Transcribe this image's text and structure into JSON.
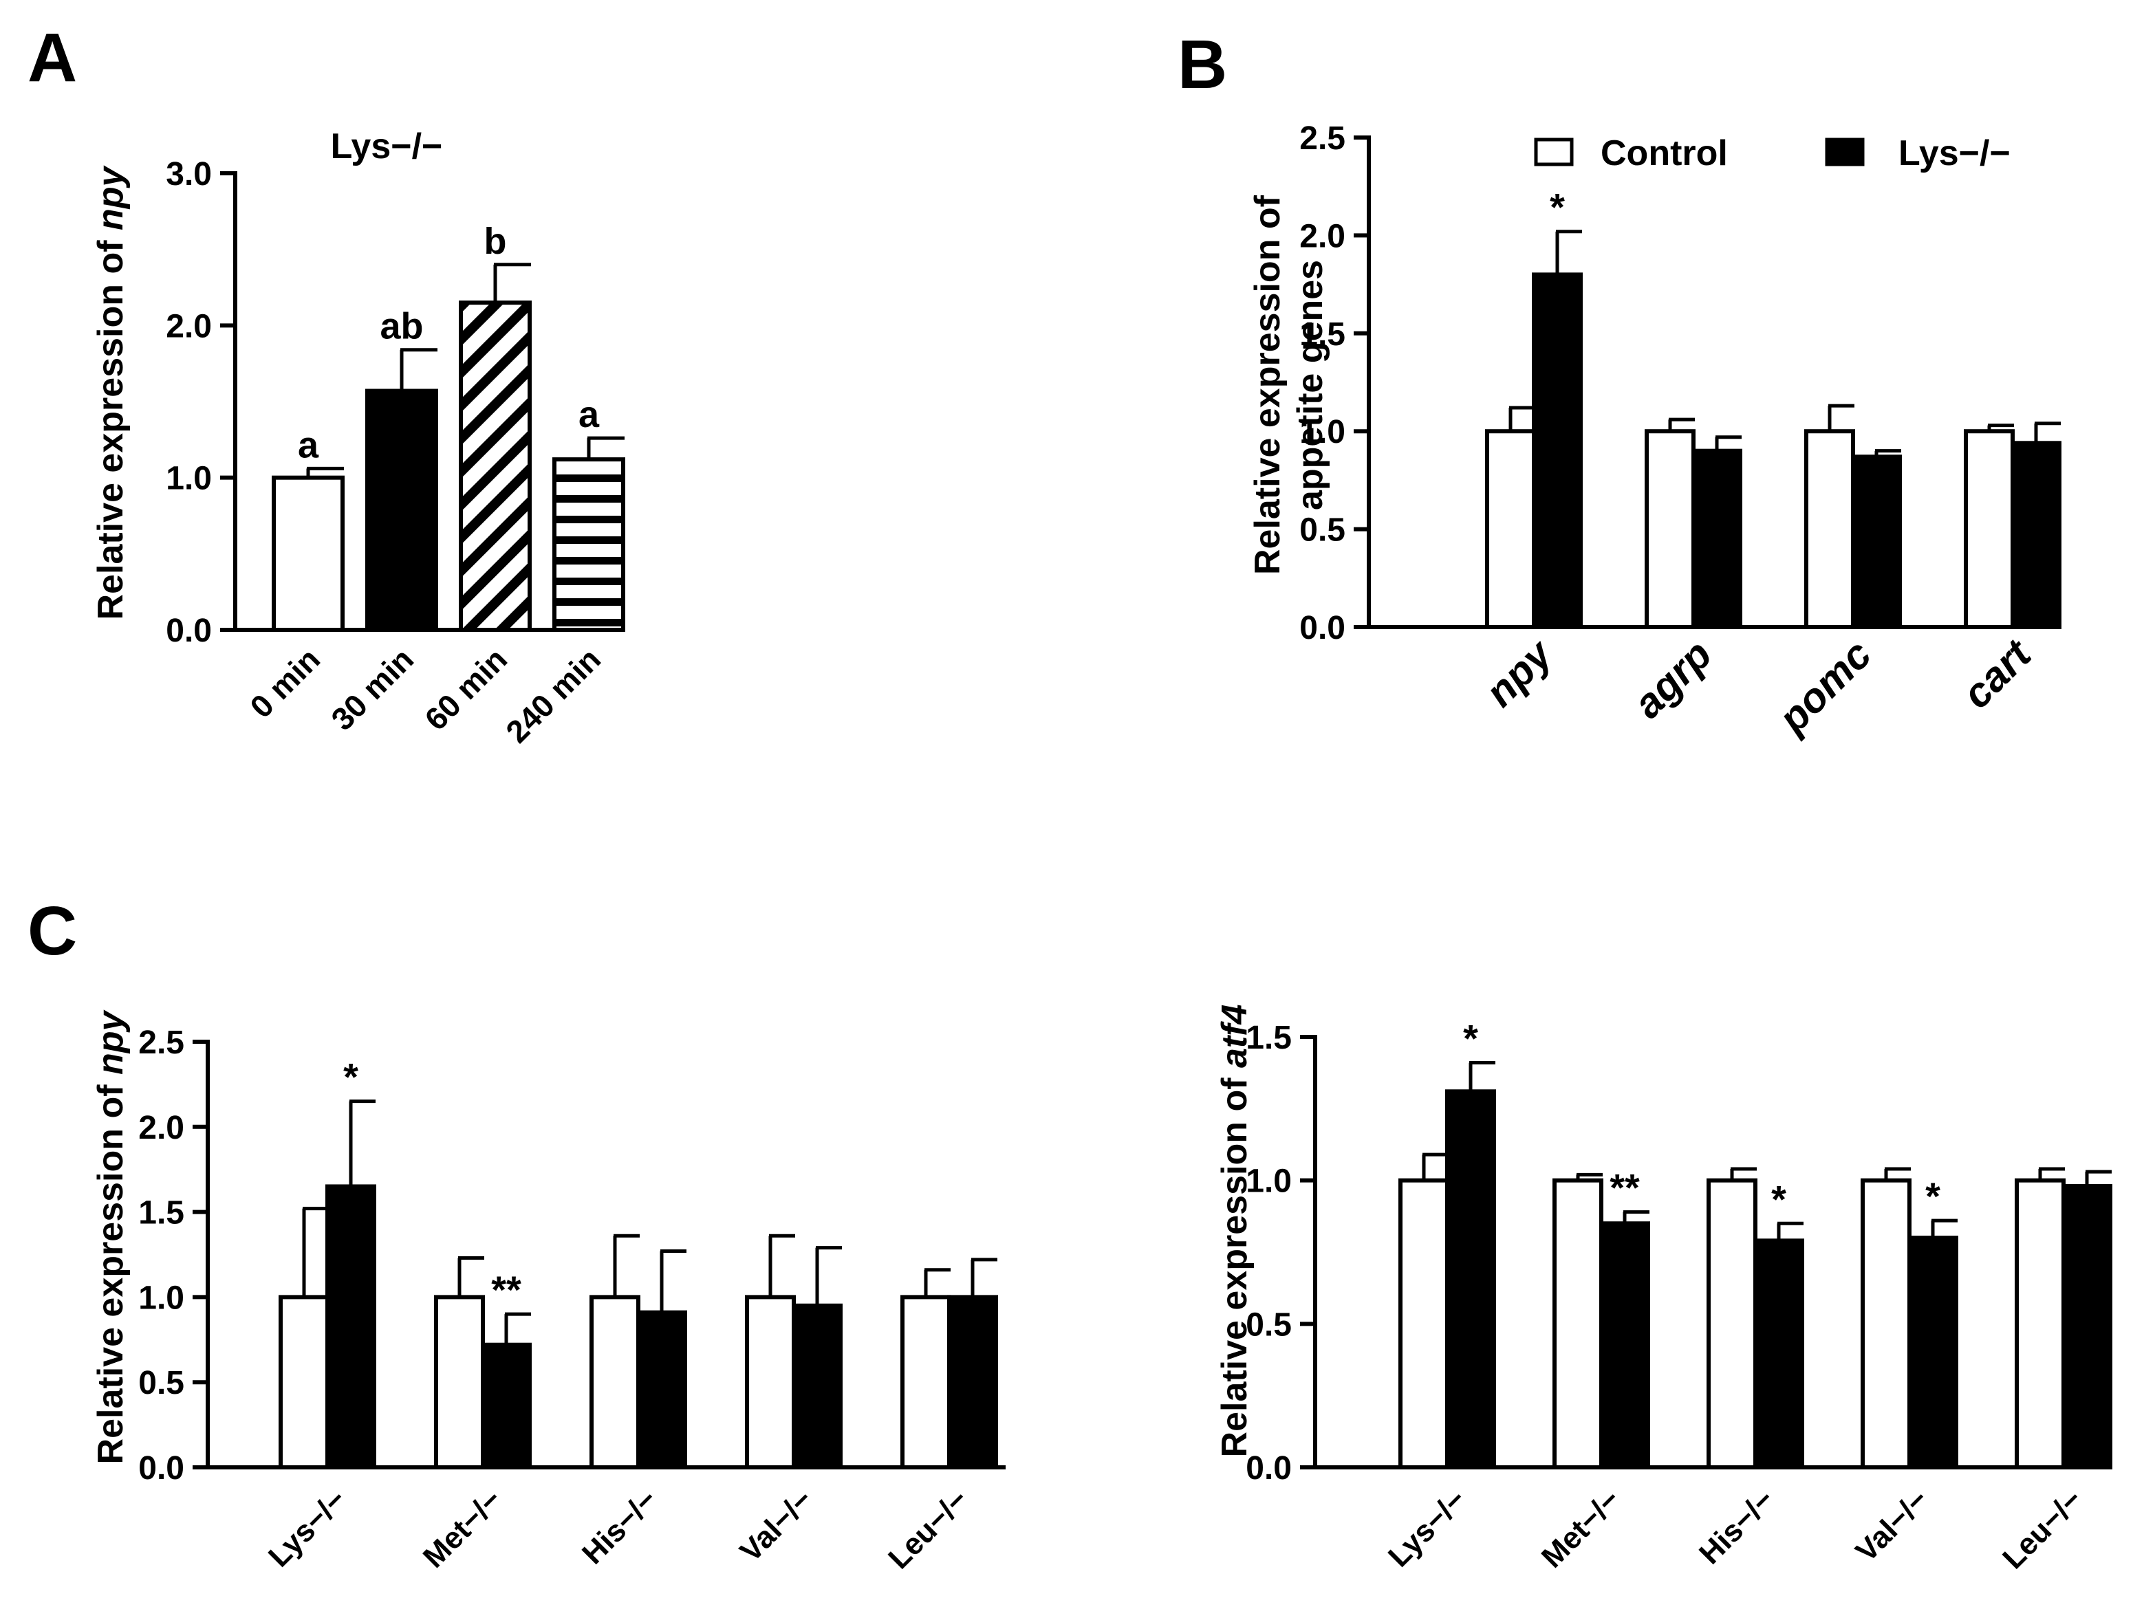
{
  "panels": {
    "A": {
      "letter": "A",
      "chart_data": {
        "type": "bar",
        "title": "Lys−/−",
        "ylabel_prefix": "Relative expression of ",
        "ylabel_italic": "npy",
        "ylim": [
          0,
          3.0
        ],
        "yticks": [
          "0.0",
          "1.0",
          "2.0",
          "3.0"
        ],
        "categories": [
          "0 min",
          "30 min",
          "60 min",
          "240 min"
        ],
        "values": [
          1.0,
          1.57,
          2.15,
          1.12
        ],
        "errors": [
          0.06,
          0.27,
          0.25,
          0.14
        ],
        "fills": [
          "white",
          "black",
          "diagonal",
          "horizontal"
        ],
        "annotations": [
          "a",
          "ab",
          "b",
          "a"
        ]
      }
    },
    "B": {
      "letter": "B",
      "chart_data": {
        "type": "bar",
        "ylabel_line1": "Relative expression of",
        "ylabel_line2": "appetite genes",
        "ylim": [
          0,
          2.5
        ],
        "yticks": [
          "0.0",
          "0.5",
          "1.0",
          "1.5",
          "2.0",
          "2.5"
        ],
        "categories": [
          "npy",
          "agrp",
          "pomc",
          "cart"
        ],
        "legend": {
          "position": "top",
          "entries": [
            "Control",
            "Lys−/−"
          ]
        },
        "series": [
          {
            "fill": "white",
            "values": [
              1.0,
              1.0,
              1.0,
              1.0
            ],
            "errors": [
              0.12,
              0.06,
              0.13,
              0.03
            ]
          },
          {
            "fill": "black",
            "values": [
              1.8,
              0.9,
              0.87,
              0.94
            ],
            "errors": [
              0.22,
              0.07,
              0.03,
              0.1
            ]
          }
        ],
        "annotations": [
          "*",
          "",
          "",
          ""
        ]
      }
    },
    "C1": {
      "letter": "C",
      "chart_data": {
        "type": "bar",
        "ylabel_prefix": "Relative expression of ",
        "ylabel_italic": "npy",
        "ylim": [
          0,
          2.5
        ],
        "yticks": [
          "0.0",
          "0.5",
          "1.0",
          "1.5",
          "2.0",
          "2.5"
        ],
        "categories": [
          "Lys−/−",
          "Met−/−",
          "His−/−",
          "Val−/−",
          "Leu−/−"
        ],
        "series": [
          {
            "fill": "white",
            "values": [
              1.0,
              1.0,
              1.0,
              1.0,
              1.0
            ],
            "errors": [
              0.52,
              0.23,
              0.36,
              0.36,
              0.16
            ]
          },
          {
            "fill": "black",
            "values": [
              1.65,
              0.72,
              0.91,
              0.95,
              1.0
            ],
            "errors": [
              0.5,
              0.18,
              0.36,
              0.34,
              0.22
            ]
          }
        ],
        "annotations": [
          "*",
          "**",
          "",
          "",
          ""
        ]
      }
    },
    "C2": {
      "letter": "",
      "chart_data": {
        "type": "bar",
        "ylabel_prefix": "Relative expression of ",
        "ylabel_italic": "atf4",
        "ylim": [
          0,
          1.5
        ],
        "yticks": [
          "0.0",
          "0.5",
          "1.0",
          "1.5"
        ],
        "categories": [
          "Lys−/−",
          "Met−/−",
          "His−/−",
          "Val−/−",
          "Leu−/−"
        ],
        "series": [
          {
            "fill": "white",
            "values": [
              1.0,
              1.0,
              1.0,
              1.0,
              1.0
            ],
            "errors": [
              0.09,
              0.02,
              0.04,
              0.04,
              0.04
            ]
          },
          {
            "fill": "black",
            "values": [
              1.31,
              0.85,
              0.79,
              0.8,
              0.98
            ],
            "errors": [
              0.1,
              0.04,
              0.06,
              0.06,
              0.05
            ]
          }
        ],
        "annotations": [
          "*",
          "**",
          "*",
          "*",
          ""
        ]
      }
    }
  }
}
